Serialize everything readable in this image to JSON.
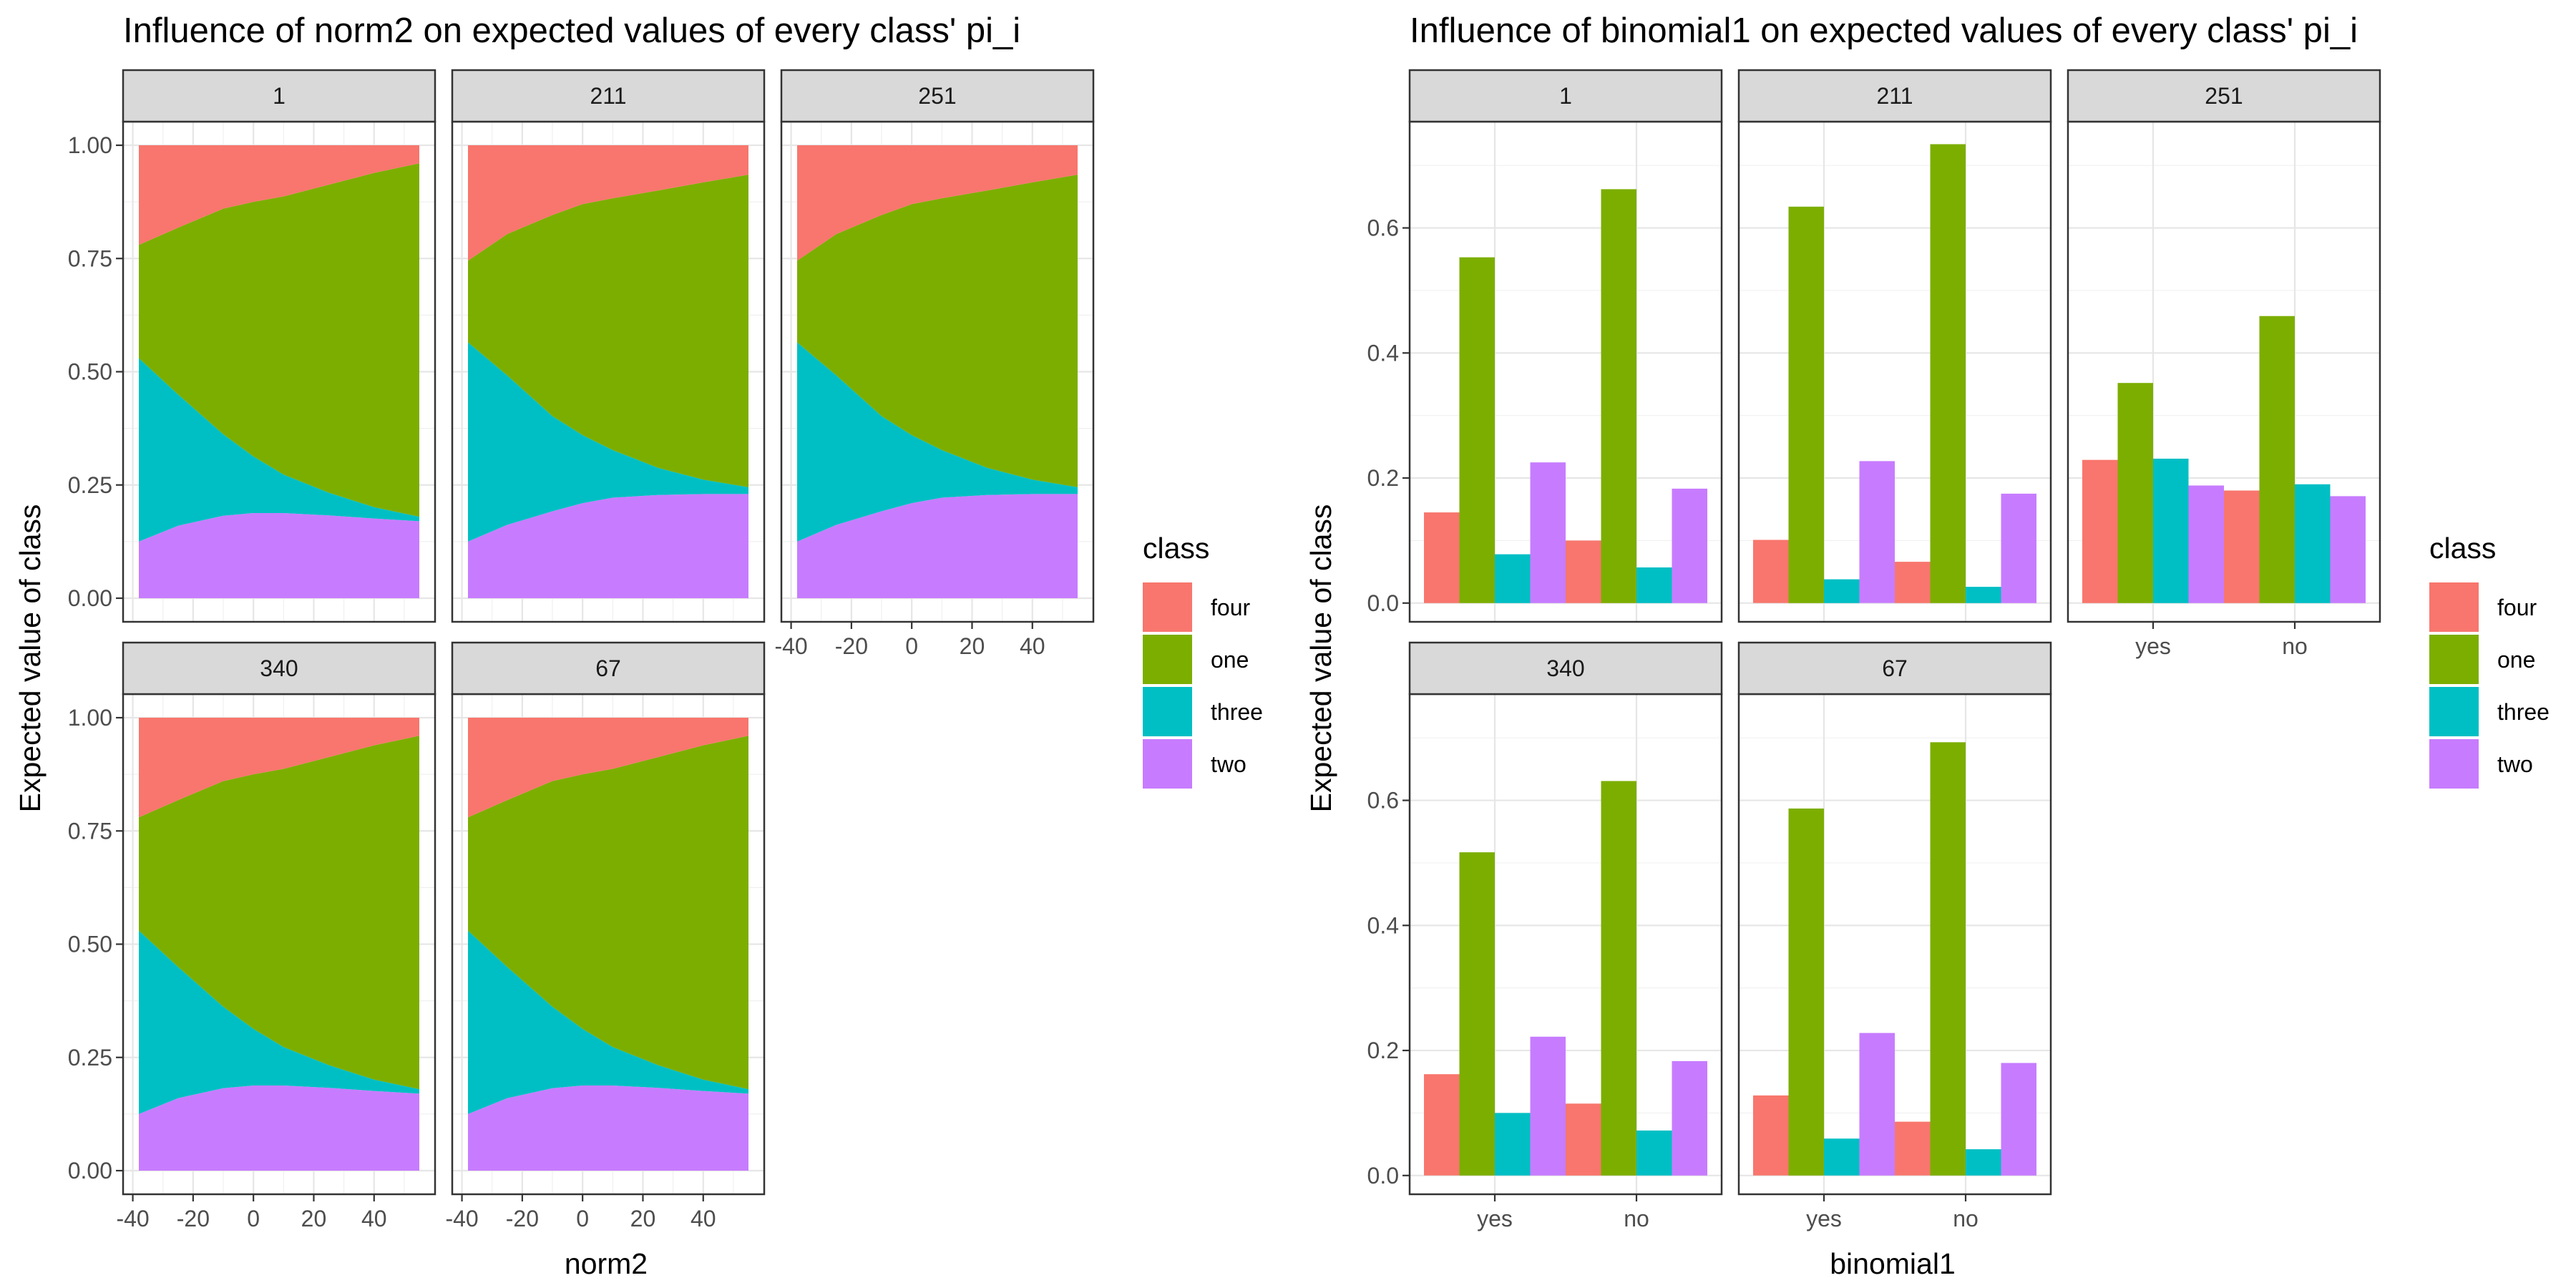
{
  "colors": {
    "four": "#F8766D",
    "one": "#7CAE00",
    "three": "#00BFC4",
    "two": "#C77CFF"
  },
  "chart_data": [
    {
      "type": "area",
      "title": "Influence of norm2 on expected values of every class' pi_i",
      "xlabel": "norm2",
      "ylabel": "Expected value of class",
      "xlim": [
        -38,
        55
      ],
      "ylim": [
        0,
        1
      ],
      "x_ticks": [
        "-40",
        "-20",
        "0",
        "20",
        "40"
      ],
      "y_ticks": [
        "0.00",
        "0.25",
        "0.50",
        "0.75",
        "1.00"
      ],
      "stacking": "proportion (bottom to top: two, three, one, four)",
      "legend": {
        "title": "class",
        "items": [
          "four",
          "one",
          "three",
          "two"
        ]
      },
      "x": [
        -38,
        -25,
        -10,
        0,
        10,
        25,
        40,
        55
      ],
      "panels": [
        {
          "label": "1",
          "series": [
            {
              "name": "two",
              "values": [
                0.125,
                0.16,
                0.182,
                0.188,
                0.188,
                0.183,
                0.176,
                0.17
              ]
            },
            {
              "name": "three",
              "values": [
                0.405,
                0.29,
                0.18,
                0.125,
                0.085,
                0.05,
                0.025,
                0.01
              ]
            },
            {
              "name": "one",
              "values": [
                0.25,
                0.368,
                0.498,
                0.562,
                0.614,
                0.68,
                0.738,
                0.78
              ]
            },
            {
              "name": "four",
              "values": [
                0.22,
                0.182,
                0.14,
                0.125,
                0.113,
                0.087,
                0.061,
                0.04
              ]
            }
          ]
        },
        {
          "label": "211",
          "series": [
            {
              "name": "two",
              "values": [
                0.125,
                0.162,
                0.192,
                0.21,
                0.222,
                0.228,
                0.23,
                0.23
              ]
            },
            {
              "name": "three",
              "values": [
                0.44,
                0.33,
                0.21,
                0.15,
                0.105,
                0.06,
                0.032,
                0.015
              ]
            },
            {
              "name": "one",
              "values": [
                0.18,
                0.312,
                0.444,
                0.51,
                0.556,
                0.612,
                0.656,
                0.69
              ]
            },
            {
              "name": "four",
              "values": [
                0.255,
                0.196,
                0.154,
                0.13,
                0.117,
                0.1,
                0.082,
                0.065
              ]
            }
          ]
        },
        {
          "label": "251",
          "series": [
            {
              "name": "two",
              "values": [
                0.125,
                0.162,
                0.192,
                0.21,
                0.222,
                0.228,
                0.23,
                0.23
              ]
            },
            {
              "name": "three",
              "values": [
                0.44,
                0.33,
                0.21,
                0.15,
                0.105,
                0.06,
                0.032,
                0.015
              ]
            },
            {
              "name": "one",
              "values": [
                0.18,
                0.312,
                0.444,
                0.51,
                0.556,
                0.612,
                0.656,
                0.69
              ]
            },
            {
              "name": "four",
              "values": [
                0.255,
                0.196,
                0.154,
                0.13,
                0.117,
                0.1,
                0.082,
                0.065
              ]
            }
          ]
        },
        {
          "label": "340",
          "series": [
            {
              "name": "two",
              "values": [
                0.125,
                0.16,
                0.182,
                0.188,
                0.188,
                0.183,
                0.176,
                0.17
              ]
            },
            {
              "name": "three",
              "values": [
                0.405,
                0.29,
                0.18,
                0.125,
                0.085,
                0.05,
                0.025,
                0.01
              ]
            },
            {
              "name": "one",
              "values": [
                0.25,
                0.368,
                0.498,
                0.562,
                0.614,
                0.68,
                0.738,
                0.78
              ]
            },
            {
              "name": "four",
              "values": [
                0.22,
                0.182,
                0.14,
                0.125,
                0.113,
                0.087,
                0.061,
                0.04
              ]
            }
          ]
        },
        {
          "label": "67",
          "series": [
            {
              "name": "two",
              "values": [
                0.125,
                0.16,
                0.182,
                0.188,
                0.188,
                0.183,
                0.176,
                0.17
              ]
            },
            {
              "name": "three",
              "values": [
                0.405,
                0.29,
                0.18,
                0.125,
                0.085,
                0.05,
                0.025,
                0.01
              ]
            },
            {
              "name": "one",
              "values": [
                0.25,
                0.368,
                0.498,
                0.562,
                0.614,
                0.68,
                0.738,
                0.78
              ]
            },
            {
              "name": "four",
              "values": [
                0.22,
                0.182,
                0.14,
                0.125,
                0.113,
                0.087,
                0.061,
                0.04
              ]
            }
          ]
        }
      ]
    },
    {
      "type": "bar",
      "title": "Influence of binomial1 on expected values of every class' pi_i",
      "xlabel": "binomial1",
      "ylabel": "Expected value of class",
      "categories": [
        "yes",
        "no"
      ],
      "ylim": [
        -0.03,
        0.77
      ],
      "y_ticks": [
        "0.0",
        "0.2",
        "0.4",
        "0.6"
      ],
      "legend": {
        "title": "class",
        "items": [
          "four",
          "one",
          "three",
          "two"
        ]
      },
      "panels": [
        {
          "label": "1",
          "series": [
            {
              "name": "four",
              "values": [
                0.145,
                0.1
              ]
            },
            {
              "name": "one",
              "values": [
                0.553,
                0.662
              ]
            },
            {
              "name": "three",
              "values": [
                0.078,
                0.057
              ]
            },
            {
              "name": "two",
              "values": [
                0.225,
                0.183
              ]
            }
          ]
        },
        {
          "label": "211",
          "series": [
            {
              "name": "four",
              "values": [
                0.101,
                0.066
              ]
            },
            {
              "name": "one",
              "values": [
                0.634,
                0.734
              ]
            },
            {
              "name": "three",
              "values": [
                0.038,
                0.026
              ]
            },
            {
              "name": "two",
              "values": [
                0.227,
                0.175
              ]
            }
          ]
        },
        {
          "label": "251",
          "series": [
            {
              "name": "four",
              "values": [
                0.229,
                0.18
              ]
            },
            {
              "name": "one",
              "values": [
                0.352,
                0.459
              ]
            },
            {
              "name": "three",
              "values": [
                0.231,
                0.19
              ]
            },
            {
              "name": "two",
              "values": [
                0.188,
                0.171
              ]
            }
          ]
        },
        {
          "label": "340",
          "series": [
            {
              "name": "four",
              "values": [
                0.162,
                0.115
              ]
            },
            {
              "name": "one",
              "values": [
                0.517,
                0.631
              ]
            },
            {
              "name": "three",
              "values": [
                0.1,
                0.072
              ]
            },
            {
              "name": "two",
              "values": [
                0.222,
                0.183
              ]
            }
          ]
        },
        {
          "label": "67",
          "series": [
            {
              "name": "four",
              "values": [
                0.128,
                0.086
              ]
            },
            {
              "name": "one",
              "values": [
                0.587,
                0.693
              ]
            },
            {
              "name": "three",
              "values": [
                0.059,
                0.042
              ]
            },
            {
              "name": "two",
              "values": [
                0.228,
                0.18
              ]
            }
          ]
        }
      ]
    }
  ]
}
